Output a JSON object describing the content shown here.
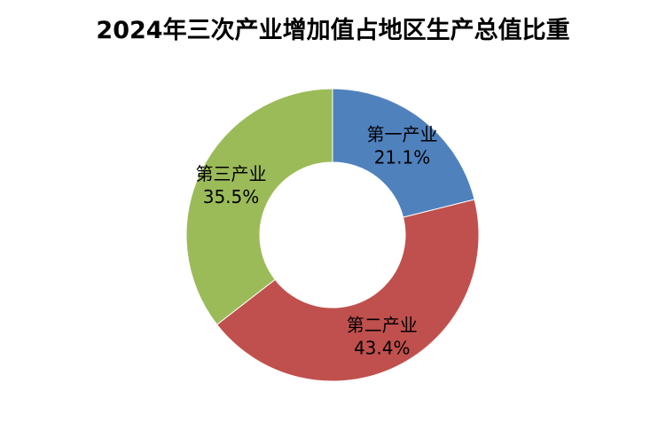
{
  "chart_data": {
    "type": "pie",
    "style": "donut",
    "title": "2024年三次产业增加值占地区生产总值比重",
    "categories": [
      "第一产业",
      "第二产业",
      "第三产业"
    ],
    "values": [
      21.1,
      43.4,
      35.5
    ],
    "value_labels": [
      "21.1%",
      "43.4%",
      "35.5%"
    ],
    "colors": [
      "#4f81bd",
      "#c0504d",
      "#9bbb59"
    ],
    "legend": "none",
    "grid": false
  }
}
